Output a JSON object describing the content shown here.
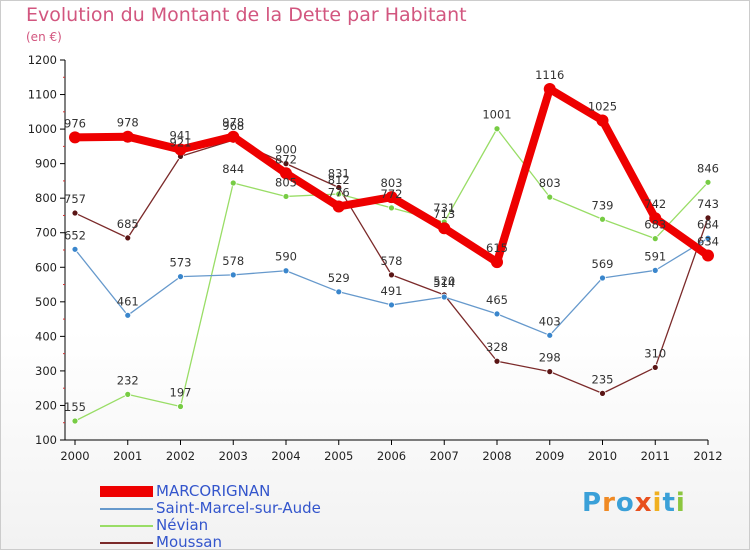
{
  "title": "Evolution du Montant de la Dette par Habitant",
  "subtitle": "(en €)",
  "logo": {
    "text": "Proxiti",
    "letters": [
      {
        "ch": "P",
        "color": "#3aa0d8"
      },
      {
        "ch": "r",
        "color": "#f08a24"
      },
      {
        "ch": "o",
        "color": "#3aa0d8"
      },
      {
        "ch": "x",
        "color": "#e8501e"
      },
      {
        "ch": "i",
        "color": "#f0b020"
      },
      {
        "ch": "t",
        "color": "#3aa0d8"
      },
      {
        "ch": "i",
        "color": "#8cc63f"
      }
    ]
  },
  "chart_data": {
    "type": "line",
    "title": "Evolution du Montant de la Dette par Habitant",
    "subtitle": "(en €)",
    "xlabel": "",
    "ylabel": "",
    "x": [
      "2000",
      "2001",
      "2002",
      "2003",
      "2004",
      "2005",
      "2006",
      "2007",
      "2008",
      "2009",
      "2010",
      "2011",
      "2012"
    ],
    "ylim": [
      100,
      1200
    ],
    "yticks": [
      100,
      200,
      300,
      400,
      500,
      600,
      700,
      800,
      900,
      1000,
      1100,
      1200
    ],
    "grid": false,
    "legend_position": "bottom-left",
    "series": [
      {
        "name": "Moussan",
        "color": "#7b2a2a",
        "marker": "#5a1515",
        "values": [
          757,
          685,
          921,
          968,
          900,
          831,
          578,
          520,
          328,
          298,
          235,
          310,
          743
        ],
        "labels": [
          "757",
          "685",
          "921",
          "968",
          "900",
          "831",
          "578",
          "520",
          "328",
          "298",
          "235",
          "310",
          "743"
        ]
      },
      {
        "name": "Névian",
        "color": "#99dd66",
        "marker": "#77cc44",
        "values": [
          155,
          232,
          197,
          844,
          805,
          812,
          772,
          731,
          1001,
          803,
          739,
          683,
          846
        ],
        "labels": [
          "155",
          "232",
          "197",
          "844",
          "805",
          "812",
          "772",
          "731",
          "1001",
          "803",
          "739",
          "683",
          "846"
        ]
      },
      {
        "name": "Saint-Marcel-sur-Aude",
        "color": "#6699cc",
        "marker": "#3a86cc",
        "values": [
          652,
          461,
          573,
          578,
          590,
          529,
          491,
          514,
          465,
          403,
          569,
          591,
          684
        ],
        "labels": [
          "652",
          "461",
          "573",
          "578",
          "590",
          "529",
          "491",
          "514",
          "465",
          "403",
          "569",
          "591",
          "684"
        ]
      },
      {
        "name": "MARCORIGNAN",
        "color": "#ee0000",
        "marker": "#ee0000",
        "values": [
          976,
          978,
          941,
          978,
          872,
          776,
          803,
          713,
          615,
          1116,
          1025,
          742,
          634
        ],
        "labels": [
          "976",
          "978",
          "941",
          "978",
          "872",
          "776",
          "803",
          "713",
          "615",
          "1116",
          "1025",
          "742",
          "634"
        ]
      }
    ]
  },
  "legend": [
    {
      "name": "MARCORIGNAN",
      "color": "#ee0000"
    },
    {
      "name": "Saint-Marcel-sur-Aude",
      "color": "#6699cc"
    },
    {
      "name": "Névian",
      "color": "#99dd66"
    },
    {
      "name": "Moussan",
      "color": "#7b2a2a"
    }
  ]
}
